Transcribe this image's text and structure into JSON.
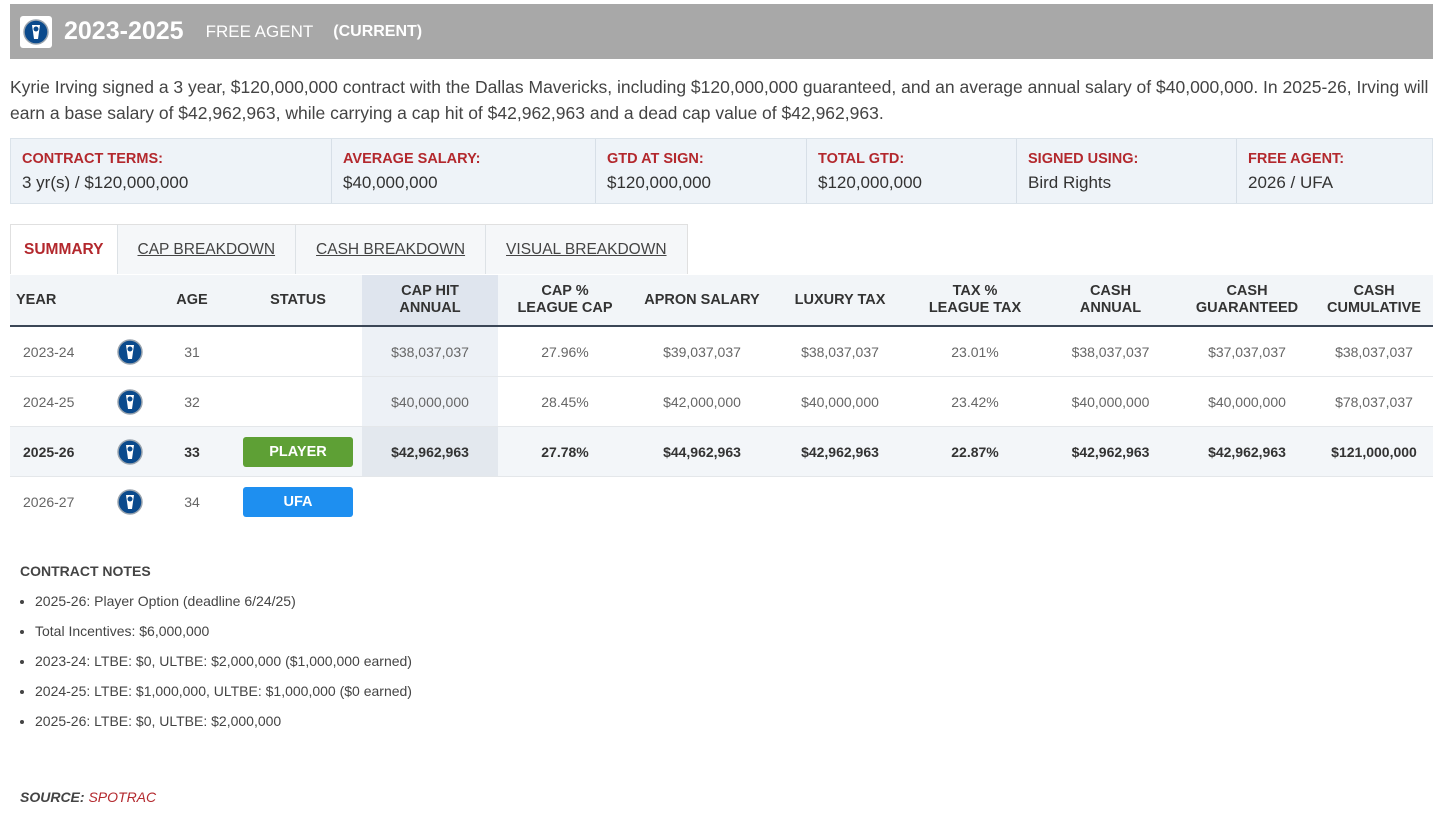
{
  "header": {
    "years": "2023-2025",
    "free_agent_label": "FREE AGENT",
    "current_label": "(CURRENT)",
    "logo_icon": "mavericks-logo-icon"
  },
  "description": "Kyrie Irving signed a 3 year, $120,000,000 contract with the Dallas Mavericks, including $120,000,000 guaranteed, and an average annual salary of $40,000,000. In 2025-26, Irving will earn a base salary of $42,962,963, while carrying a cap hit of $42,962,963 and a dead cap value of $42,962,963.",
  "terms": [
    {
      "label": "CONTRACT TERMS:",
      "value": "3 yr(s) / $120,000,000"
    },
    {
      "label": "AVERAGE SALARY:",
      "value": "$40,000,000"
    },
    {
      "label": "GTD AT SIGN:",
      "value": "$120,000,000"
    },
    {
      "label": "TOTAL GTD:",
      "value": "$120,000,000"
    },
    {
      "label": "SIGNED USING:",
      "value": "Bird Rights"
    },
    {
      "label": "FREE AGENT:",
      "value": "2026 / UFA"
    }
  ],
  "tabs": [
    {
      "label": "SUMMARY",
      "active": true
    },
    {
      "label": "CAP BREAKDOWN"
    },
    {
      "label": "CASH BREAKDOWN"
    },
    {
      "label": "VISUAL BREAKDOWN"
    }
  ],
  "table": {
    "headers": {
      "year": "YEAR",
      "age": "AGE",
      "status": "STATUS",
      "cap_hit_1": "CAP HIT",
      "cap_hit_2": "ANNUAL",
      "cap_pct_1": "CAP %",
      "cap_pct_2": "LEAGUE CAP",
      "apron": "APRON SALARY",
      "luxury": "LUXURY TAX",
      "tax_pct_1": "TAX %",
      "tax_pct_2": "LEAGUE TAX",
      "cash_annual_1": "CASH",
      "cash_annual_2": "ANNUAL",
      "cash_gtd_1": "CASH",
      "cash_gtd_2": "GUARANTEED",
      "cash_cum_1": "CASH",
      "cash_cum_2": "CUMULATIVE"
    },
    "rows": [
      {
        "year": "2023-24",
        "age": "31",
        "status": "",
        "cap_hit": "$38,037,037",
        "cap_pct": "27.96%",
        "apron": "$39,037,037",
        "luxury": "$38,037,037",
        "tax_pct": "23.01%",
        "cash_annual": "$38,037,037",
        "cash_gtd": "$37,037,037",
        "cash_cum": "$38,037,037"
      },
      {
        "year": "2024-25",
        "age": "32",
        "status": "",
        "cap_hit": "$40,000,000",
        "cap_pct": "28.45%",
        "apron": "$42,000,000",
        "luxury": "$40,000,000",
        "tax_pct": "23.42%",
        "cash_annual": "$40,000,000",
        "cash_gtd": "$40,000,000",
        "cash_cum": "$78,037,037"
      },
      {
        "year": "2025-26",
        "age": "33",
        "status": "PLAYER",
        "cap_hit": "$42,962,963",
        "cap_pct": "27.78%",
        "apron": "$44,962,963",
        "luxury": "$42,962,963",
        "tax_pct": "22.87%",
        "cash_annual": "$42,962,963",
        "cash_gtd": "$42,962,963",
        "cash_cum": "$121,000,000"
      },
      {
        "year": "2026-27",
        "age": "34",
        "status": "UFA",
        "cap_hit": "",
        "cap_pct": "",
        "apron": "",
        "luxury": "",
        "tax_pct": "",
        "cash_annual": "",
        "cash_gtd": "",
        "cash_cum": ""
      }
    ]
  },
  "notes": {
    "title": "CONTRACT NOTES",
    "items": [
      "2025-26: Player Option (deadline 6/24/25)",
      "Total Incentives: $6,000,000",
      "2023-24: LTBE: $0, ULTBE: $2,000,000 ($1,000,000 earned)",
      "2024-25: LTBE: $1,000,000, ULTBE: $1,000,000 ($0 earned)",
      "2025-26: LTBE: $0, ULTBE: $2,000,000"
    ]
  },
  "source": {
    "label": "SOURCE:",
    "name": "SPOTRAC"
  },
  "colors": {
    "accent_red": "#b3282d",
    "player_badge": "#5ea035",
    "ufa_badge": "#1e8ff0",
    "header_bg": "#a8a8a8"
  }
}
